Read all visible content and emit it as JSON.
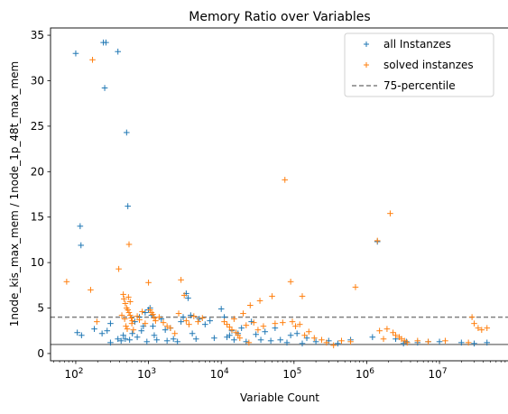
{
  "chart_data": {
    "type": "scatter",
    "title": "Memory Ratio over Variables",
    "xlabel": "Variable Count",
    "ylabel": "1node_kis_max_mem / 1node_1p_48t_max_mem",
    "x_scale": "log",
    "xlim": [
      45,
      90000000
    ],
    "ylim": [
      -0.8,
      35.8
    ],
    "x_ticks": [
      {
        "value": 100,
        "base": "10",
        "exp": "2"
      },
      {
        "value": 1000,
        "base": "10",
        "exp": "3"
      },
      {
        "value": 10000,
        "base": "10",
        "exp": "4"
      },
      {
        "value": 100000,
        "base": "10",
        "exp": "5"
      },
      {
        "value": 1000000,
        "base": "10",
        "exp": "6"
      },
      {
        "value": 10000000,
        "base": "10",
        "exp": "7"
      }
    ],
    "y_ticks": [
      {
        "value": 0,
        "label": "0"
      },
      {
        "value": 5,
        "label": "5"
      },
      {
        "value": 10,
        "label": "10"
      },
      {
        "value": 15,
        "label": "15"
      },
      {
        "value": 20,
        "label": "20"
      },
      {
        "value": 25,
        "label": "25"
      },
      {
        "value": 30,
        "label": "30"
      },
      {
        "value": 35,
        "label": "35"
      }
    ],
    "grid": false,
    "legend_position": "top-right",
    "reference_lines": [
      {
        "name": "75-percentile",
        "y": 4.0,
        "style": "dashed",
        "color": "#808080"
      },
      {
        "name": "",
        "y": 1.0,
        "style": "solid",
        "color": "#808080"
      }
    ],
    "series": [
      {
        "name": "all Instanzes",
        "color": "#1f77b4",
        "marker": "+",
        "points": [
          [
            100,
            33.0
          ],
          [
            240,
            34.2
          ],
          [
            260,
            34.2
          ],
          [
            380,
            33.2
          ],
          [
            250,
            29.2
          ],
          [
            500,
            24.3
          ],
          [
            520,
            16.2
          ],
          [
            115,
            14.0
          ],
          [
            118,
            11.9
          ],
          [
            105,
            2.3
          ],
          [
            120,
            2.0
          ],
          [
            180,
            2.7
          ],
          [
            230,
            2.2
          ],
          [
            270,
            2.5
          ],
          [
            300,
            3.3
          ],
          [
            300,
            1.2
          ],
          [
            380,
            1.6
          ],
          [
            420,
            1.4
          ],
          [
            450,
            2.0
          ],
          [
            480,
            1.6
          ],
          [
            550,
            1.5
          ],
          [
            600,
            2.2
          ],
          [
            650,
            3.5
          ],
          [
            700,
            1.8
          ],
          [
            750,
            4.0
          ],
          [
            800,
            2.5
          ],
          [
            850,
            3.0
          ],
          [
            900,
            4.5
          ],
          [
            950,
            1.3
          ],
          [
            1000,
            4.8
          ],
          [
            1050,
            5.0
          ],
          [
            1100,
            4.2
          ],
          [
            1150,
            3.0
          ],
          [
            1200,
            2.0
          ],
          [
            1300,
            1.5
          ],
          [
            1500,
            3.8
          ],
          [
            1700,
            2.6
          ],
          [
            1800,
            1.4
          ],
          [
            2000,
            2.8
          ],
          [
            2200,
            1.6
          ],
          [
            2500,
            1.3
          ],
          [
            2800,
            3.5
          ],
          [
            3000,
            4.0
          ],
          [
            3300,
            6.6
          ],
          [
            3500,
            6.1
          ],
          [
            3800,
            4.2
          ],
          [
            4000,
            2.2
          ],
          [
            4500,
            1.6
          ],
          [
            5000,
            3.8
          ],
          [
            6000,
            3.2
          ],
          [
            7000,
            3.6
          ],
          [
            8000,
            1.7
          ],
          [
            10000,
            4.9
          ],
          [
            11000,
            4.0
          ],
          [
            12000,
            1.8
          ],
          [
            13000,
            2.0
          ],
          [
            14000,
            2.5
          ],
          [
            15000,
            1.5
          ],
          [
            17000,
            2.2
          ],
          [
            19000,
            2.8
          ],
          [
            22000,
            1.3
          ],
          [
            26000,
            3.5
          ],
          [
            30000,
            2.1
          ],
          [
            35000,
            1.5
          ],
          [
            40000,
            2.4
          ],
          [
            48000,
            1.4
          ],
          [
            55000,
            2.8
          ],
          [
            65000,
            1.5
          ],
          [
            80000,
            1.2
          ],
          [
            90000,
            2.0
          ],
          [
            110000,
            2.2
          ],
          [
            130000,
            1.1
          ],
          [
            150000,
            1.7
          ],
          [
            200000,
            1.3
          ],
          [
            300000,
            1.4
          ],
          [
            400000,
            1.1
          ],
          [
            600000,
            1.5
          ],
          [
            1200000,
            1.8
          ],
          [
            1400000,
            12.3
          ],
          [
            2500000,
            1.6
          ],
          [
            3200000,
            1.1
          ],
          [
            3500000,
            1.3
          ],
          [
            5000000,
            1.2
          ],
          [
            7000000,
            1.3
          ],
          [
            10000000,
            1.3
          ],
          [
            20000000,
            1.2
          ],
          [
            30000000,
            1.1
          ],
          [
            45000000,
            1.2
          ]
        ]
      },
      {
        "name": "solved instanzes",
        "color": "#ff7f0e",
        "marker": "+",
        "points": [
          [
            75,
            7.9
          ],
          [
            170,
            32.3
          ],
          [
            160,
            7.0
          ],
          [
            195,
            3.5
          ],
          [
            390,
            9.3
          ],
          [
            540,
            12.0
          ],
          [
            450,
            6.5
          ],
          [
            460,
            6.0
          ],
          [
            480,
            5.5
          ],
          [
            500,
            5.0
          ],
          [
            520,
            4.8
          ],
          [
            540,
            4.5
          ],
          [
            560,
            4.2
          ],
          [
            580,
            3.9
          ],
          [
            600,
            3.6
          ],
          [
            430,
            4.2
          ],
          [
            470,
            3.8
          ],
          [
            490,
            3.0
          ],
          [
            510,
            2.7
          ],
          [
            530,
            6.2
          ],
          [
            560,
            5.7
          ],
          [
            590,
            3.3
          ],
          [
            620,
            2.6
          ],
          [
            700,
            4.1
          ],
          [
            750,
            3.7
          ],
          [
            820,
            4.6
          ],
          [
            900,
            3.3
          ],
          [
            1000,
            7.8
          ],
          [
            1050,
            4.8
          ],
          [
            1100,
            4.5
          ],
          [
            1150,
            4.3
          ],
          [
            1200,
            3.9
          ],
          [
            1250,
            3.6
          ],
          [
            1400,
            4.0
          ],
          [
            1600,
            3.4
          ],
          [
            1800,
            3.0
          ],
          [
            2000,
            2.8
          ],
          [
            2300,
            2.2
          ],
          [
            2600,
            4.4
          ],
          [
            2800,
            8.1
          ],
          [
            3100,
            6.4
          ],
          [
            3300,
            3.6
          ],
          [
            3600,
            3.2
          ],
          [
            4200,
            4.1
          ],
          [
            4800,
            3.5
          ],
          [
            5500,
            3.9
          ],
          [
            11000,
            3.5
          ],
          [
            12000,
            3.2
          ],
          [
            13000,
            2.9
          ],
          [
            14000,
            2.6
          ],
          [
            15000,
            3.8
          ],
          [
            16000,
            2.3
          ],
          [
            17000,
            2.0
          ],
          [
            18000,
            1.7
          ],
          [
            20000,
            4.4
          ],
          [
            22000,
            3.1
          ],
          [
            24000,
            1.2
          ],
          [
            25000,
            5.3
          ],
          [
            28000,
            3.4
          ],
          [
            32000,
            2.6
          ],
          [
            34000,
            5.8
          ],
          [
            38000,
            3.0
          ],
          [
            50000,
            6.3
          ],
          [
            55000,
            3.3
          ],
          [
            70000,
            3.4
          ],
          [
            75000,
            19.1
          ],
          [
            90000,
            7.9
          ],
          [
            95000,
            3.5
          ],
          [
            105000,
            3.0
          ],
          [
            120000,
            3.2
          ],
          [
            130000,
            6.3
          ],
          [
            140000,
            2.0
          ],
          [
            160000,
            2.4
          ],
          [
            190000,
            1.7
          ],
          [
            240000,
            1.5
          ],
          [
            280000,
            1.2
          ],
          [
            350000,
            0.9
          ],
          [
            450000,
            1.4
          ],
          [
            600000,
            1.3
          ],
          [
            700000,
            7.3
          ],
          [
            1400000,
            12.4
          ],
          [
            1500000,
            2.5
          ],
          [
            1700000,
            1.6
          ],
          [
            1900000,
            2.7
          ],
          [
            2100000,
            15.4
          ],
          [
            2300000,
            2.3
          ],
          [
            2500000,
            2.0
          ],
          [
            2800000,
            1.8
          ],
          [
            3000000,
            1.6
          ],
          [
            3300000,
            1.4
          ],
          [
            3600000,
            1.2
          ],
          [
            5000000,
            1.4
          ],
          [
            7000000,
            1.3
          ],
          [
            12000000,
            1.4
          ],
          [
            25000000,
            1.2
          ],
          [
            28000000,
            4.0
          ],
          [
            30000000,
            3.3
          ],
          [
            34000000,
            2.8
          ],
          [
            38000000,
            2.6
          ],
          [
            45000000,
            2.8
          ]
        ]
      }
    ]
  }
}
